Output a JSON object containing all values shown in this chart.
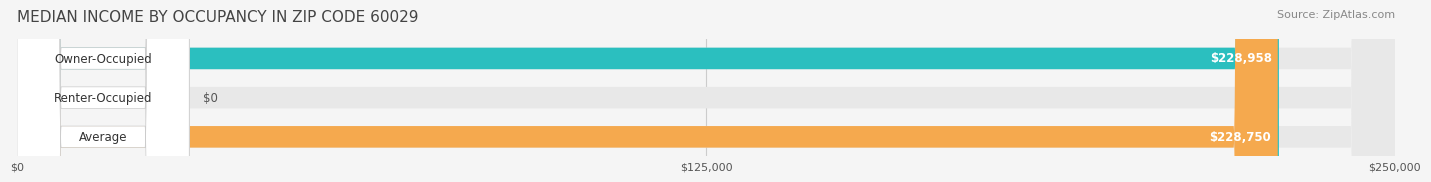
{
  "title": "MEDIAN INCOME BY OCCUPANCY IN ZIP CODE 60029",
  "source": "Source: ZipAtlas.com",
  "categories": [
    "Owner-Occupied",
    "Renter-Occupied",
    "Average"
  ],
  "values": [
    228958,
    0,
    228750
  ],
  "bar_colors": [
    "#2bbfbf",
    "#c9a8d4",
    "#f5a94e"
  ],
  "label_colors": [
    "#2bbfbf",
    "#c9a8d4",
    "#f5a94e"
  ],
  "value_labels": [
    "$228,958",
    "$0",
    "$228,750"
  ],
  "xlim": [
    0,
    250000
  ],
  "xticks": [
    0,
    125000,
    250000
  ],
  "xtick_labels": [
    "$0",
    "$125,000",
    "$250,000"
  ],
  "bg_color": "#f5f5f5",
  "bar_bg_color": "#e8e8e8",
  "title_fontsize": 11,
  "source_fontsize": 8,
  "label_fontsize": 8.5,
  "value_fontsize": 8.5,
  "bar_height": 0.55
}
